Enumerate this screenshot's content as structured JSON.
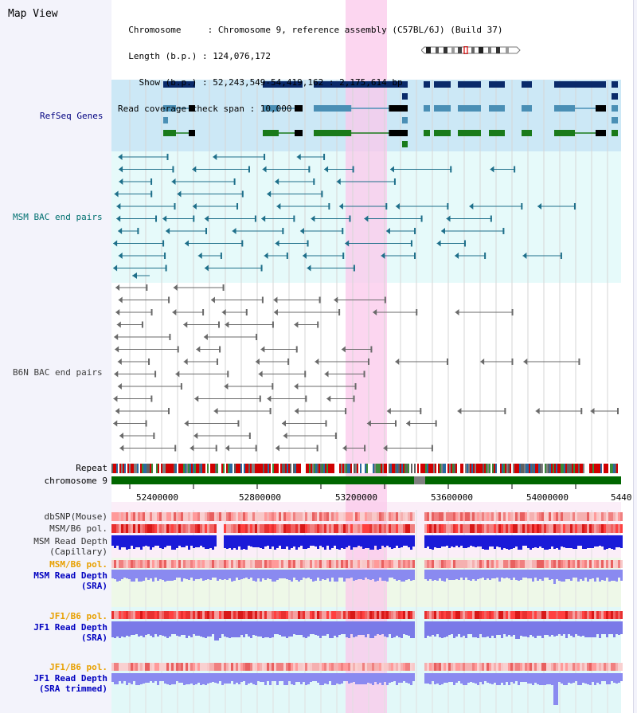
{
  "header": {
    "title": "Map View",
    "info_lines": [
      "  Chromosome     : Chromosome 9, reference assembly (C57BL/6J) (Build 37)",
      "  Length (b.p.) : 124,076,172",
      "    Show (b.p.) : 52,243,549-54,419,162 : 2,175,614 bp",
      "Read coverage check span : 10,000"
    ]
  },
  "tracks": {
    "refseq": "RefSeq Genes",
    "msm_bac": "MSM BAC end pairs",
    "b6n_bac": "B6N BAC end pairs",
    "repeat": "Repeat",
    "chromosome": "chromosome 9",
    "dbsnp": "dbSNP(Mouse)",
    "msm_b6_pol": "MSM/B6 pol.",
    "msm_depth_cap_1": "MSM Read Depth",
    "msm_depth_cap_2": "(Capillary)",
    "msm_b6_pol_sra": "MSM/B6 pol.",
    "msm_depth_sra_1": "MSM Read Depth",
    "msm_depth_sra_2": "(SRA)",
    "jf1_b6_pol": "JF1/B6 pol.",
    "jf1_depth_1": "JF1 Read Depth",
    "jf1_depth_2": "(SRA)",
    "jf1_b6_pol_trim": "JF1/B6 pol.",
    "jf1_trim_1": "JF1 Read Depth",
    "jf1_trim_2": "(SRA trimmed)"
  },
  "axis": {
    "ticks": [
      "52400000",
      "52800000",
      "53200000",
      "53600000",
      "54000000",
      "5440"
    ]
  },
  "colors": {
    "refseq_bg": "#cce8f6",
    "msm_bg": "#e6fafa",
    "highlight": "#fbd5f0",
    "msm_label": "#007070",
    "refseq_label": "#000080",
    "b6n_label": "#404040",
    "orange_label": "#e8a000",
    "blue_label": "#0000c0",
    "chromosome_bar": "#006600"
  }
}
